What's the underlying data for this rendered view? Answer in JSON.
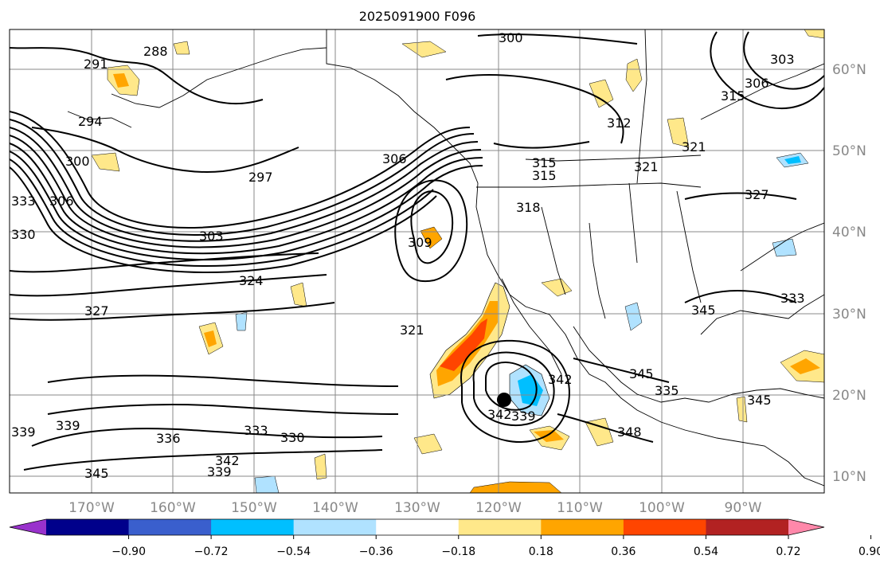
{
  "title": "2025091900 F096",
  "colors": {
    "land_outline": "#000000",
    "grid": "#888888",
    "contour": "#000000"
  },
  "lat_labels": [
    "60°N",
    "50°N",
    "40°N",
    "30°N",
    "20°N",
    "10°N"
  ],
  "lon_labels": [
    "170°W",
    "160°W",
    "150°W",
    "140°W",
    "130°W",
    "120°W",
    "110°W",
    "100°W",
    "90°W"
  ],
  "contour_labels": [
    "291",
    "288",
    "294",
    "300",
    "306",
    "333",
    "330",
    "297",
    "306",
    "303",
    "309",
    "324",
    "327",
    "321",
    "315",
    "315",
    "318",
    "312",
    "321",
    "321",
    "300",
    "303",
    "306",
    "315",
    "327",
    "333",
    "345",
    "339",
    "339",
    "336",
    "333",
    "330",
    "342",
    "339",
    "345",
    "342",
    "339",
    "342",
    "348",
    "345",
    "335",
    "345"
  ],
  "colorbar": {
    "colors": [
      "#9932CC",
      "#00008B",
      "#3A5FCD",
      "#00BFFF",
      "#B0E2FF",
      "#FFFFFF",
      "#FFE88A",
      "#FFA500",
      "#FF4500",
      "#B22222",
      "#FF88AA"
    ],
    "ticks": [
      "−0.90",
      "−0.72",
      "−0.54",
      "−0.36",
      "−0.18",
      "0.18",
      "0.36",
      "0.54",
      "0.72",
      "0.90"
    ]
  },
  "marker": "storm-center-dot"
}
